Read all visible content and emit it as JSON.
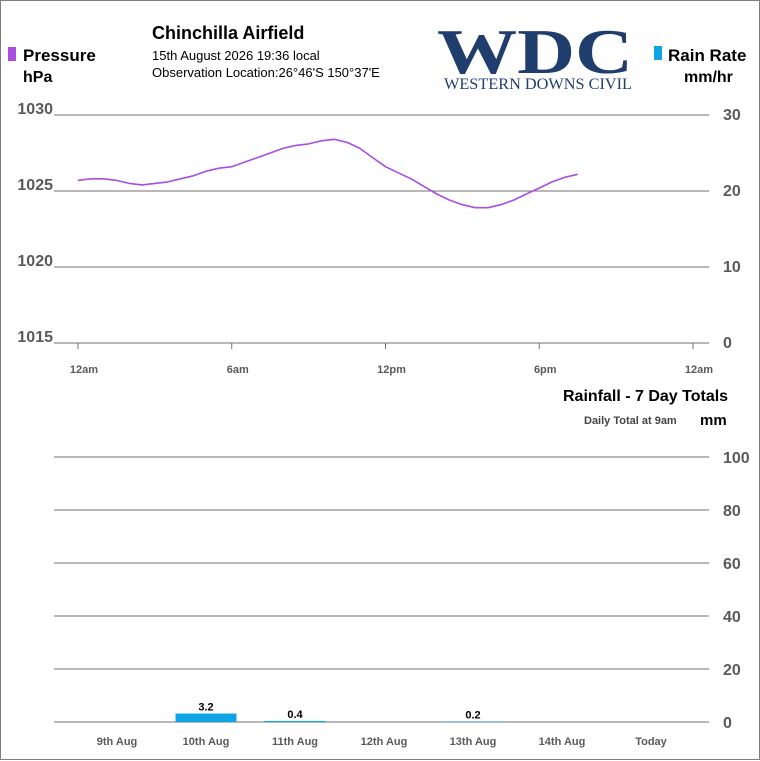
{
  "header": {
    "station": "Chinchilla Airfield",
    "datetime": "15th August 2026  19:36 local",
    "location_label": "Observation Location:",
    "location_value": "26°46'S 150°37'E"
  },
  "logo": {
    "big_text": "WDC",
    "sub_text": "WESTERN DOWNS CIVIL",
    "color": "#1f3e6d"
  },
  "legend": {
    "pressure_label": "Pressure",
    "pressure_unit": "hPa",
    "pressure_color": "#a94ee0",
    "rain_label": "Rain Rate",
    "rain_unit": "mm/hr",
    "rain_color": "#0fa4e6"
  },
  "chart_data": [
    {
      "type": "line",
      "ylabel": "hPa",
      "ylim": [
        1015,
        1030
      ],
      "yticks": [
        "1030",
        "1025",
        "1020",
        "1015"
      ],
      "y2label": "mm/hr",
      "y2lim": [
        0,
        30
      ],
      "y2ticks": [
        "30",
        "20",
        "10",
        "0"
      ],
      "x_tick_labels": [
        "12am",
        "6am",
        "12pm",
        "6pm",
        "12am"
      ],
      "x_tick_hours": [
        0,
        6,
        12,
        18,
        24
      ],
      "xlim_hours": [
        0,
        24
      ],
      "series": [
        {
          "name": "Pressure",
          "color": "#a94ee0",
          "x_hours": [
            0.0,
            0.5,
            1.0,
            1.5,
            2.0,
            2.5,
            3.0,
            3.5,
            4.0,
            4.5,
            5.0,
            5.5,
            6.0,
            6.5,
            7.0,
            7.5,
            8.0,
            8.5,
            9.0,
            9.5,
            10.0,
            10.5,
            11.0,
            11.5,
            12.0,
            12.5,
            13.0,
            13.5,
            14.0,
            14.5,
            15.0,
            15.5,
            16.0,
            16.5,
            17.0,
            17.5,
            18.0,
            18.5,
            19.0,
            19.5
          ],
          "values": [
            1025.7,
            1025.8,
            1025.8,
            1025.7,
            1025.5,
            1025.4,
            1025.5,
            1025.6,
            1025.8,
            1026.0,
            1026.3,
            1026.5,
            1026.6,
            1026.9,
            1027.2,
            1027.5,
            1027.8,
            1028.0,
            1028.1,
            1028.3,
            1028.4,
            1028.2,
            1027.8,
            1027.2,
            1026.6,
            1026.2,
            1025.8,
            1025.3,
            1024.8,
            1024.4,
            1024.1,
            1023.9,
            1023.9,
            1024.1,
            1024.4,
            1024.8,
            1025.2,
            1025.6,
            1025.9,
            1026.1
          ]
        },
        {
          "name": "Rain Rate",
          "color": "#0fa4e6",
          "axis": "right",
          "x_hours": [],
          "values": []
        }
      ]
    },
    {
      "type": "bar",
      "title": "Rainfall - 7 Day Totals",
      "subtitle": "Daily Total at 9am",
      "ylabel": "mm",
      "ylim": [
        0,
        100
      ],
      "yticks": [
        "100",
        "80",
        "60",
        "40",
        "20",
        "0"
      ],
      "color": "#0fa4e6",
      "categories": [
        "9th Aug",
        "10th Aug",
        "11th Aug",
        "12th Aug",
        "13th Aug",
        "14th Aug",
        "Today"
      ],
      "values": [
        0,
        3.2,
        0.4,
        0,
        0.2,
        0,
        0
      ],
      "value_labels": [
        "",
        "3.2",
        "0.4",
        "",
        "0.2",
        "",
        ""
      ]
    }
  ]
}
